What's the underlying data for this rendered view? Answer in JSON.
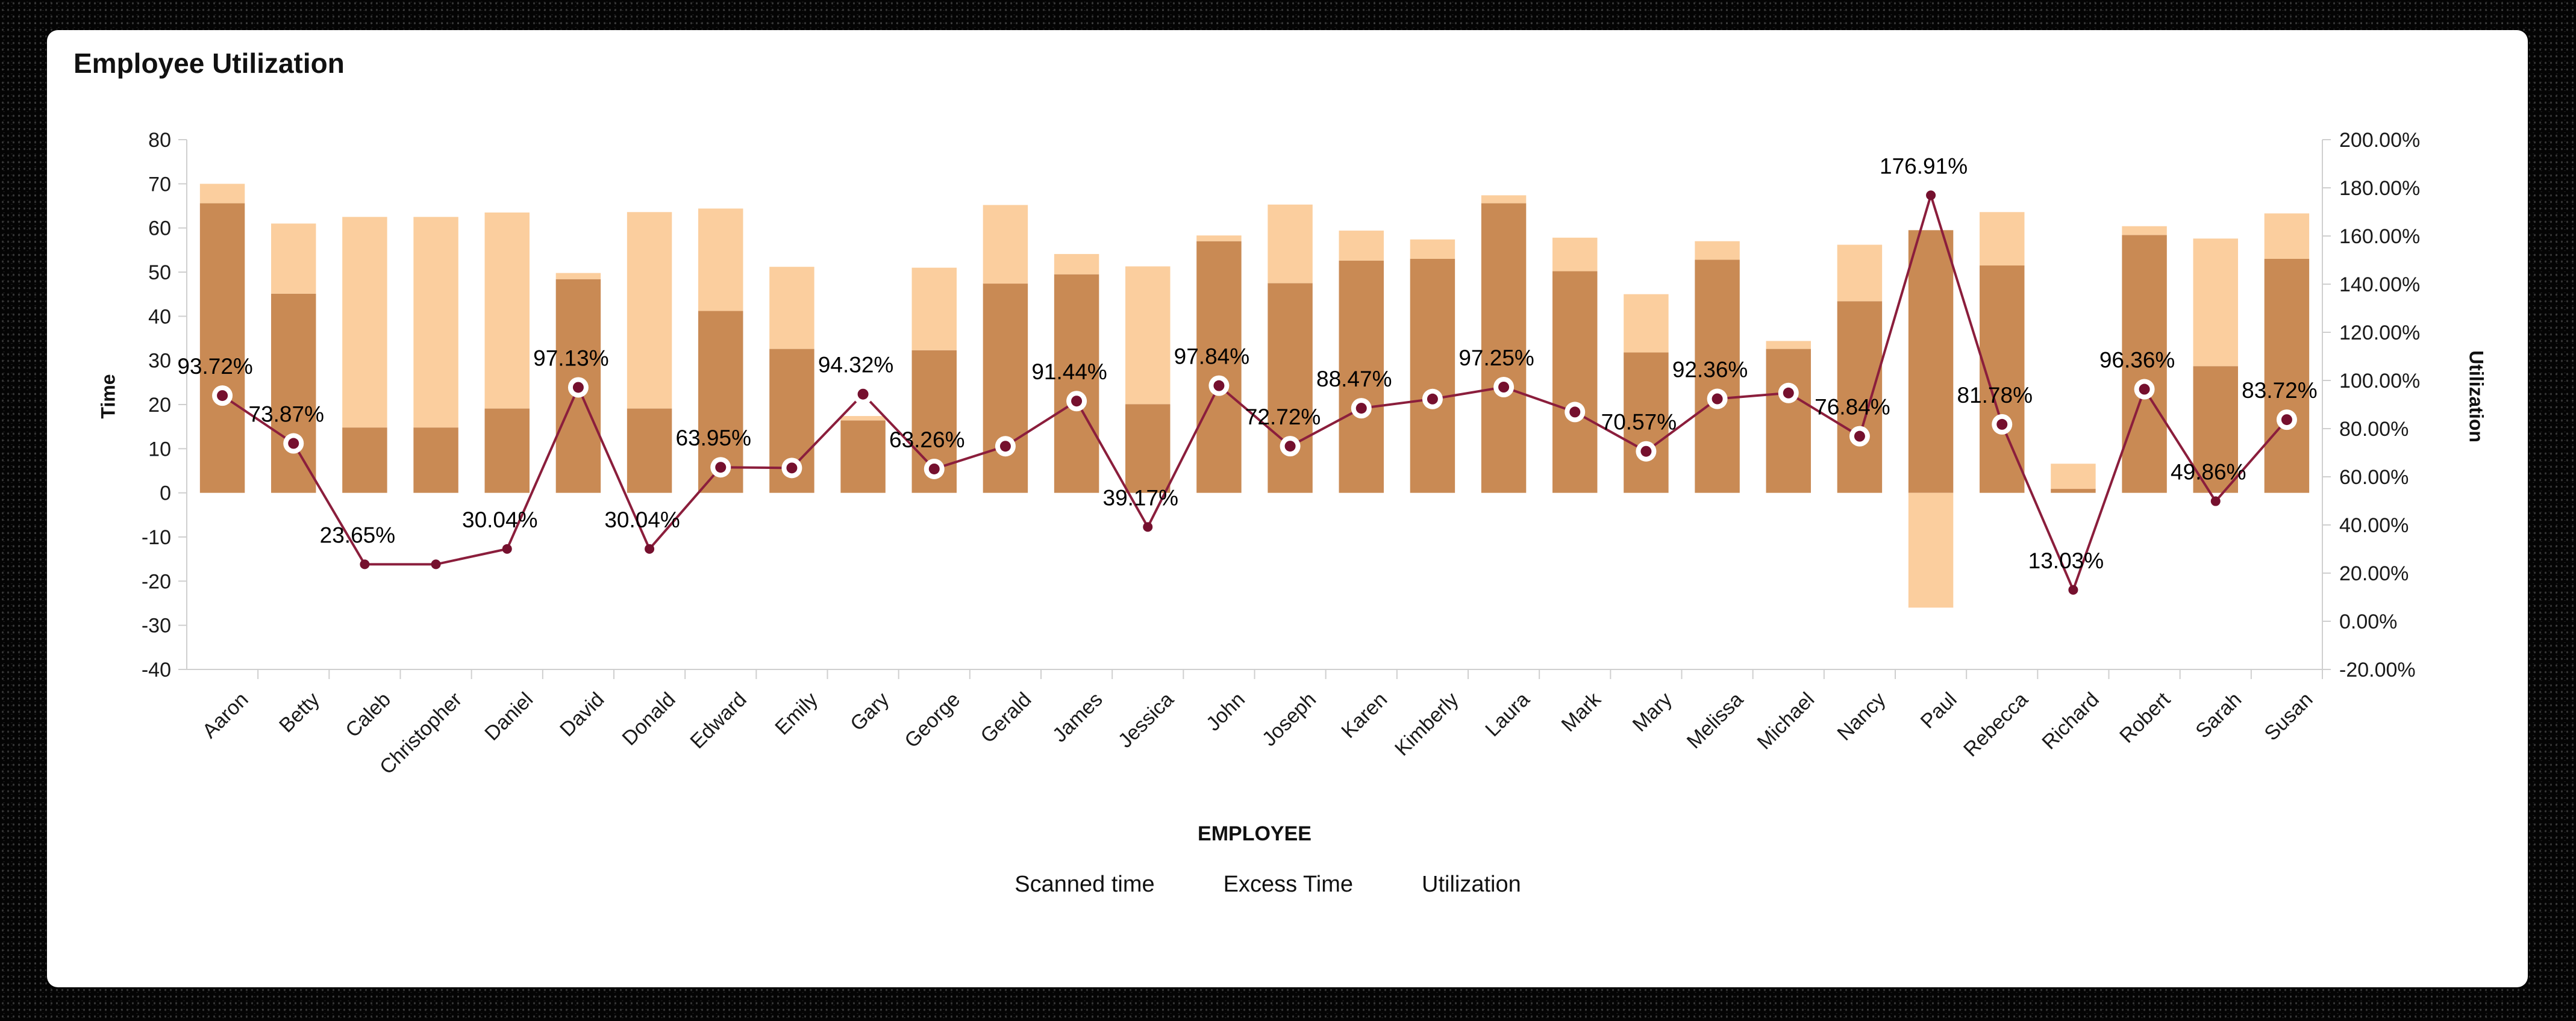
{
  "chart_data": {
    "type": "bar",
    "title": "Employee Utilization",
    "xlabel": "EMPLOYEE",
    "ylabel_left": "Time",
    "ylabel_right": "Utilization",
    "left_axis": {
      "min": -40,
      "max": 80,
      "ticks": [
        80,
        70,
        60,
        50,
        40,
        30,
        20,
        10,
        0,
        -10,
        -20,
        -30,
        -40
      ]
    },
    "right_axis": {
      "min": -20,
      "max": 200,
      "ticks": [
        "200.00%",
        "180.00%",
        "160.00%",
        "140.00%",
        "120.00%",
        "100.00%",
        "80.00%",
        "60.00%",
        "40.00%",
        "20.00%",
        "0.00%",
        "-20.00%"
      ]
    },
    "legend": [
      {
        "label": "Scanned time",
        "color": "#C98A54"
      },
      {
        "label": "Excess Time",
        "color": "#FBCE9E"
      },
      {
        "label": "Utilization",
        "color": "#75102E"
      }
    ],
    "colors": {
      "scanned": "#C98A54",
      "excess": "#FBCE9E",
      "line": "#8B1E3C",
      "point": "#75102E",
      "point_ring": "#FFFFFF",
      "axis": "#CFCFCF",
      "text": "#1A1A1A"
    },
    "series_names": [
      "Scanned time",
      "Excess Time",
      "Utilization"
    ],
    "employees": [
      {
        "name": "Aaron",
        "scanned": 65.6,
        "excess": 4.4,
        "utilization": 93.72,
        "label": "93.72%"
      },
      {
        "name": "Betty",
        "scanned": 45.1,
        "excess": 15.9,
        "utilization": 73.87,
        "label": "73.87%"
      },
      {
        "name": "Caleb",
        "scanned": 14.8,
        "excess": 47.7,
        "utilization": 23.65,
        "label": "23.65%"
      },
      {
        "name": "Christopher",
        "scanned": 14.8,
        "excess": 47.7,
        "utilization": 23.65,
        "label": null
      },
      {
        "name": "Daniel",
        "scanned": 19.1,
        "excess": 44.4,
        "utilization": 30.04,
        "label": "30.04%"
      },
      {
        "name": "David",
        "scanned": 48.4,
        "excess": 1.4,
        "utilization": 97.13,
        "label": "97.13%"
      },
      {
        "name": "Donald",
        "scanned": 19.1,
        "excess": 44.5,
        "utilization": 30.04,
        "label": "30.04%"
      },
      {
        "name": "Edward",
        "scanned": 41.2,
        "excess": 23.2,
        "utilization": 63.95,
        "label": "63.95%"
      },
      {
        "name": "Emily",
        "scanned": 32.6,
        "excess": 18.6,
        "utilization": 63.67,
        "label": null
      },
      {
        "name": "Gary",
        "scanned": 16.4,
        "excess": 1.0,
        "utilization": 94.32,
        "label": "94.32%"
      },
      {
        "name": "George",
        "scanned": 32.3,
        "excess": 18.7,
        "utilization": 63.26,
        "label": "63.26%"
      },
      {
        "name": "Gerald",
        "scanned": 47.4,
        "excess": 17.8,
        "utilization": 72.7,
        "label": null
      },
      {
        "name": "James",
        "scanned": 49.5,
        "excess": 4.6,
        "utilization": 91.44,
        "label": "91.44%"
      },
      {
        "name": "Jessica",
        "scanned": 20.1,
        "excess": 31.2,
        "utilization": 39.17,
        "label": "39.17%"
      },
      {
        "name": "John",
        "scanned": 57.0,
        "excess": 1.3,
        "utilization": 97.84,
        "label": "97.84%"
      },
      {
        "name": "Joseph",
        "scanned": 47.5,
        "excess": 17.8,
        "utilization": 72.72,
        "label": "72.72%"
      },
      {
        "name": "Karen",
        "scanned": 52.6,
        "excess": 6.8,
        "utilization": 88.47,
        "label": "88.47%"
      },
      {
        "name": "Kimberly",
        "scanned": 53.0,
        "excess": 4.4,
        "utilization": 92.3,
        "label": null
      },
      {
        "name": "Laura",
        "scanned": 65.6,
        "excess": 1.8,
        "utilization": 97.25,
        "label": "97.25%"
      },
      {
        "name": "Mark",
        "scanned": 50.2,
        "excess": 7.6,
        "utilization": 86.9,
        "label": null
      },
      {
        "name": "Mary",
        "scanned": 31.8,
        "excess": 13.2,
        "utilization": 70.57,
        "label": "70.57%"
      },
      {
        "name": "Melissa",
        "scanned": 52.8,
        "excess": 4.2,
        "utilization": 92.36,
        "label": "92.36%"
      },
      {
        "name": "Michael",
        "scanned": 32.6,
        "excess": 1.8,
        "utilization": 94.8,
        "label": null
      },
      {
        "name": "Nancy",
        "scanned": 43.4,
        "excess": 12.8,
        "utilization": 76.84,
        "label": "76.84%"
      },
      {
        "name": "Paul",
        "scanned": 59.5,
        "excess": -26.0,
        "utilization": 176.91,
        "label": "176.91%"
      },
      {
        "name": "Rebecca",
        "scanned": 51.5,
        "excess": 12.1,
        "utilization": 81.78,
        "label": "81.78%"
      },
      {
        "name": "Richard",
        "scanned": 0.9,
        "excess": 5.7,
        "utilization": 13.03,
        "label": "13.03%"
      },
      {
        "name": "Robert",
        "scanned": 58.4,
        "excess": 2.0,
        "utilization": 96.36,
        "label": "96.36%"
      },
      {
        "name": "Sarah",
        "scanned": 28.7,
        "excess": 28.9,
        "utilization": 49.86,
        "label": "49.86%"
      },
      {
        "name": "Susan",
        "scanned": 53.0,
        "excess": 10.3,
        "utilization": 83.72,
        "label": "83.72%"
      }
    ],
    "grid": false,
    "legend_position": "bottom"
  }
}
